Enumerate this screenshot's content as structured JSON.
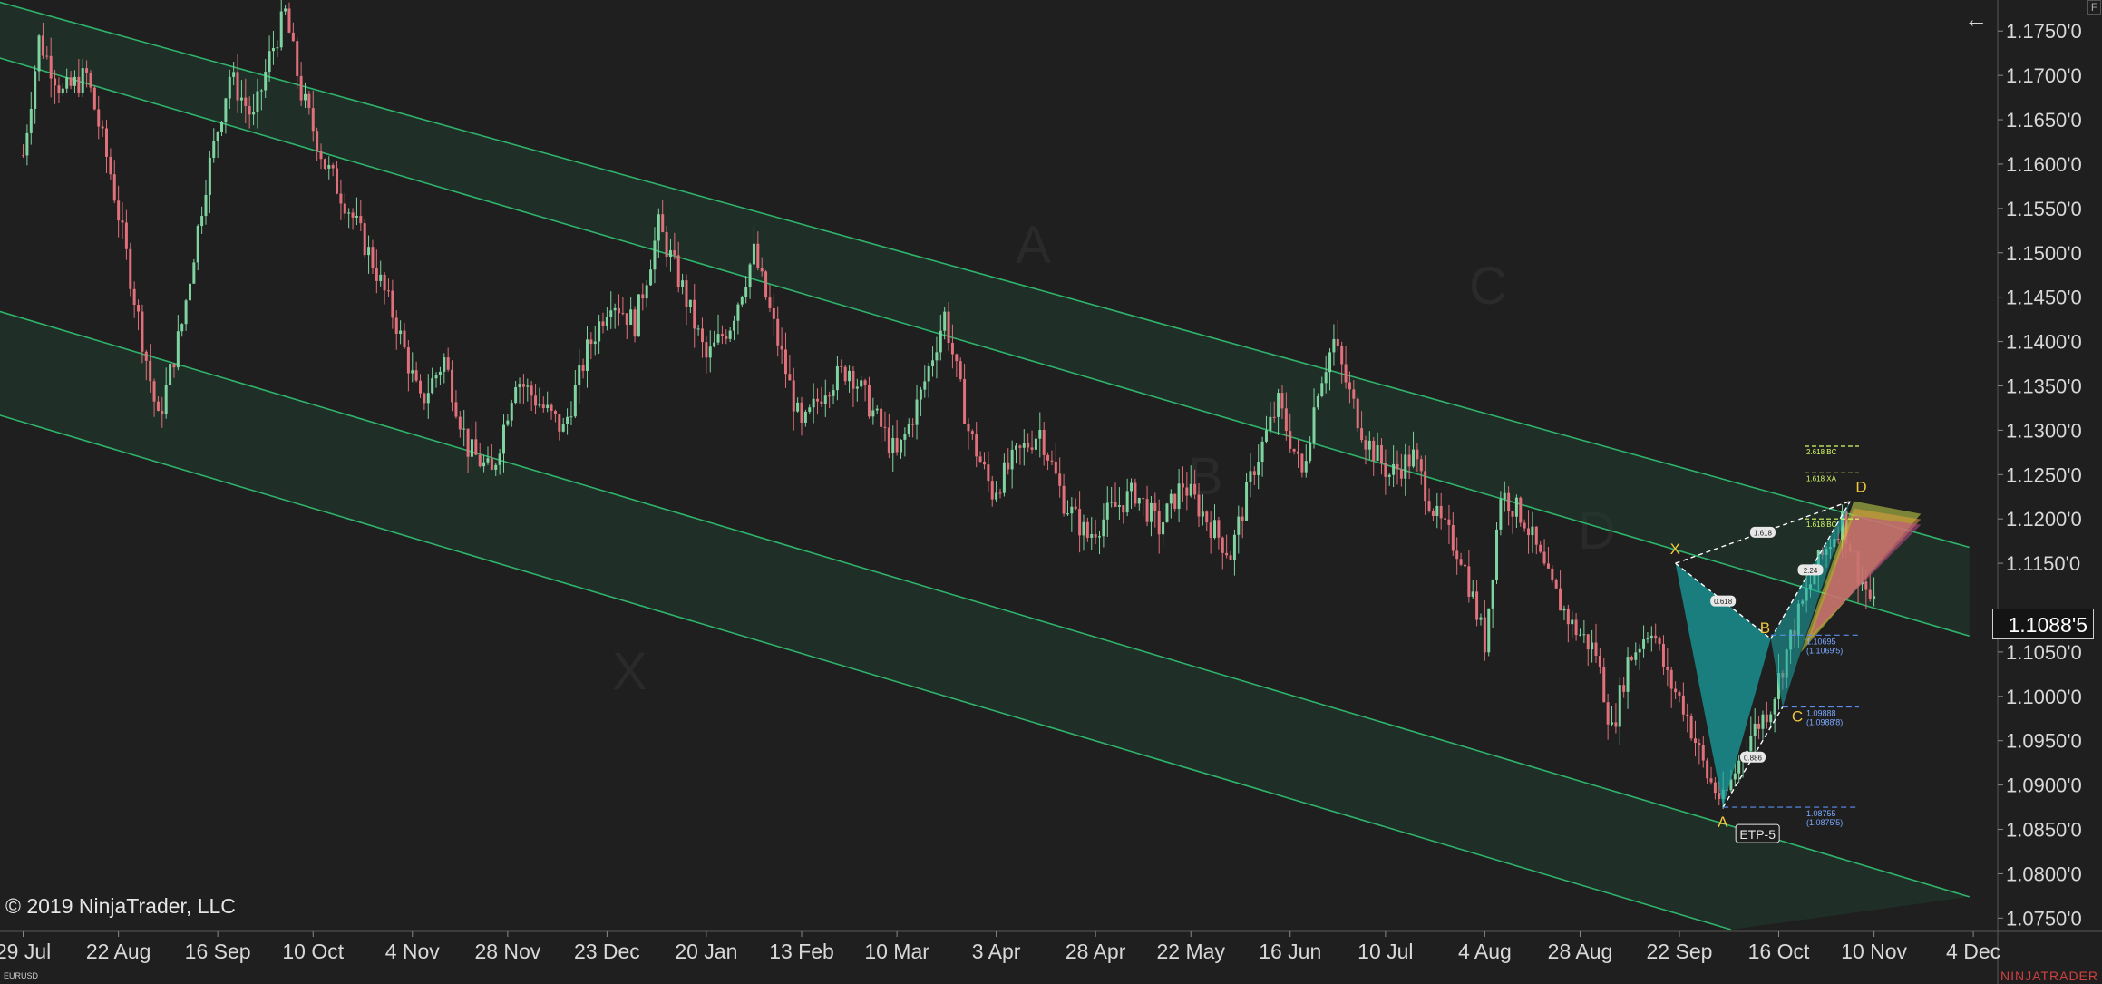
{
  "symbol": "EURUSD",
  "copyright": "© 2019 NinjaTrader, LLC",
  "brand": "NINJATRADER",
  "corner_button": "F",
  "back_icon": "arrow-left-icon",
  "colors": {
    "background": "#1f1f1f",
    "channel_line": "#2fb36b",
    "channel_fill": "#1f3a2c",
    "candle_up": "#7fd3a0",
    "candle_down": "#e0707a",
    "pattern_fill": "#19a7a7",
    "fib_yellow": "#d8ff6a",
    "level_blue": "#5b8ff0"
  },
  "chart_data": {
    "type": "candlestick",
    "instrument": "EURUSD",
    "y_ticks": [
      "1.1750'0",
      "1.1700'0",
      "1.1650'0",
      "1.1600'0",
      "1.1550'0",
      "1.1500'0",
      "1.1450'0",
      "1.1400'0",
      "1.1350'0",
      "1.1300'0",
      "1.1250'0",
      "1.1200'0",
      "1.1150'0",
      "1.1050'0",
      "1.1000'0",
      "1.0950'0",
      "1.0900'0",
      "1.0850'0",
      "1.0800'0",
      "1.0750'0"
    ],
    "y_tick_values": [
      1.175,
      1.17,
      1.165,
      1.16,
      1.155,
      1.15,
      1.145,
      1.14,
      1.135,
      1.13,
      1.125,
      1.12,
      1.115,
      1.105,
      1.1,
      1.095,
      1.09,
      1.085,
      1.08,
      1.075
    ],
    "x_ticks": [
      "29 Jul",
      "22 Aug",
      "16 Sep",
      "10 Oct",
      "4 Nov",
      "28 Nov",
      "23 Dec",
      "20 Jan",
      "13 Feb",
      "10 Mar",
      "3 Apr",
      "28 Apr",
      "22 May",
      "16 Jun",
      "10 Jul",
      "4 Aug",
      "28 Aug",
      "22 Sep",
      "16 Oct",
      "10 Nov",
      "4 Dec"
    ],
    "x_tick_index": [
      0,
      24,
      49,
      73,
      98,
      122,
      147,
      172,
      196,
      220,
      245,
      270,
      294,
      319,
      343,
      368,
      392,
      417,
      442,
      466,
      491
    ],
    "ylim": [
      1.0735,
      1.1785
    ],
    "last_price": "1.1088'5",
    "last_price_value": 1.10885,
    "price_path": [
      [
        0,
        1.161
      ],
      [
        4,
        1.174
      ],
      [
        10,
        1.168
      ],
      [
        16,
        1.17
      ],
      [
        22,
        1.159
      ],
      [
        28,
        1.145
      ],
      [
        34,
        1.131
      ],
      [
        40,
        1.142
      ],
      [
        46,
        1.158
      ],
      [
        52,
        1.17
      ],
      [
        58,
        1.165
      ],
      [
        62,
        1.172
      ],
      [
        66,
        1.177
      ],
      [
        70,
        1.168
      ],
      [
        76,
        1.16
      ],
      [
        82,
        1.155
      ],
      [
        88,
        1.149
      ],
      [
        94,
        1.142
      ],
      [
        100,
        1.133
      ],
      [
        106,
        1.138
      ],
      [
        112,
        1.128
      ],
      [
        118,
        1.125
      ],
      [
        124,
        1.136
      ],
      [
        130,
        1.133
      ],
      [
        136,
        1.13
      ],
      [
        142,
        1.139
      ],
      [
        148,
        1.145
      ],
      [
        154,
        1.142
      ],
      [
        160,
        1.153
      ],
      [
        166,
        1.146
      ],
      [
        172,
        1.138
      ],
      [
        178,
        1.142
      ],
      [
        184,
        1.15
      ],
      [
        190,
        1.14
      ],
      [
        196,
        1.13
      ],
      [
        202,
        1.135
      ],
      [
        208,
        1.137
      ],
      [
        214,
        1.132
      ],
      [
        220,
        1.127
      ],
      [
        226,
        1.134
      ],
      [
        232,
        1.143
      ],
      [
        238,
        1.13
      ],
      [
        244,
        1.123
      ],
      [
        250,
        1.127
      ],
      [
        256,
        1.13
      ],
      [
        262,
        1.122
      ],
      [
        268,
        1.118
      ],
      [
        274,
        1.121
      ],
      [
        280,
        1.123
      ],
      [
        286,
        1.119
      ],
      [
        292,
        1.124
      ],
      [
        298,
        1.12
      ],
      [
        304,
        1.116
      ],
      [
        310,
        1.126
      ],
      [
        316,
        1.133
      ],
      [
        322,
        1.125
      ],
      [
        326,
        1.135
      ],
      [
        330,
        1.14
      ],
      [
        334,
        1.134
      ],
      [
        338,
        1.129
      ],
      [
        344,
        1.125
      ],
      [
        350,
        1.127
      ],
      [
        356,
        1.12
      ],
      [
        362,
        1.116
      ],
      [
        368,
        1.106
      ],
      [
        372,
        1.123
      ],
      [
        378,
        1.12
      ],
      [
        384,
        1.113
      ],
      [
        390,
        1.108
      ],
      [
        396,
        1.105
      ],
      [
        400,
        1.096
      ],
      [
        404,
        1.104
      ],
      [
        410,
        1.108
      ],
      [
        414,
        1.102
      ],
      [
        418,
        1.099
      ],
      [
        424,
        1.091
      ],
      [
        428,
        1.088
      ],
      [
        434,
        1.095
      ],
      [
        440,
        1.099
      ],
      [
        446,
        1.108
      ],
      [
        452,
        1.115
      ],
      [
        458,
        1.12
      ],
      [
        462,
        1.114
      ],
      [
        466,
        1.11
      ]
    ],
    "channels": [
      {
        "name": "upper",
        "lines": [
          [
            [
              -12,
              1.179
            ],
            [
              490,
              1.1168
            ]
          ],
          [
            [
              -10,
              1.1725
            ],
            [
              490,
              1.1068
            ]
          ]
        ]
      },
      {
        "name": "lower",
        "lines": [
          [
            [
              -12,
              1.1442
            ],
            [
              490,
              1.0774
            ]
          ],
          [
            [
              -12,
              1.1325
            ],
            [
              430,
              1.0737
            ]
          ]
        ]
      }
    ],
    "harmonic_pattern": {
      "points": [
        {
          "label": "X",
          "i": 416,
          "price": 1.115
        },
        {
          "label": "A",
          "i": 428,
          "price": 1.0875
        },
        {
          "label": "B",
          "i": 440,
          "price": 1.1065
        },
        {
          "label": "C",
          "i": 443,
          "price": 1.0988
        },
        {
          "label": "D",
          "i": 460,
          "price": 1.122
        }
      ],
      "tag": "ETP-5",
      "ratio_labels": [
        "0.618",
        "0.886",
        "1.618",
        "2.24"
      ],
      "levels": [
        {
          "value": "1.10695",
          "sub": "(1.1069'5)",
          "price": 1.1069
        },
        {
          "value": "1.09888",
          "sub": "(1.0988'8)",
          "price": 1.0988
        },
        {
          "value": "1.08755",
          "sub": "(1.0875'5)",
          "price": 1.0875
        }
      ],
      "fib_levels": [
        {
          "label": "2.618 BC",
          "price": 1.1282
        },
        {
          "label": "1.618 XA",
          "price": 1.1252
        },
        {
          "label": "1.618 BC",
          "price": 1.12
        }
      ]
    },
    "watermark_letters": [
      "A",
      "B",
      "C",
      "D",
      "X"
    ]
  }
}
